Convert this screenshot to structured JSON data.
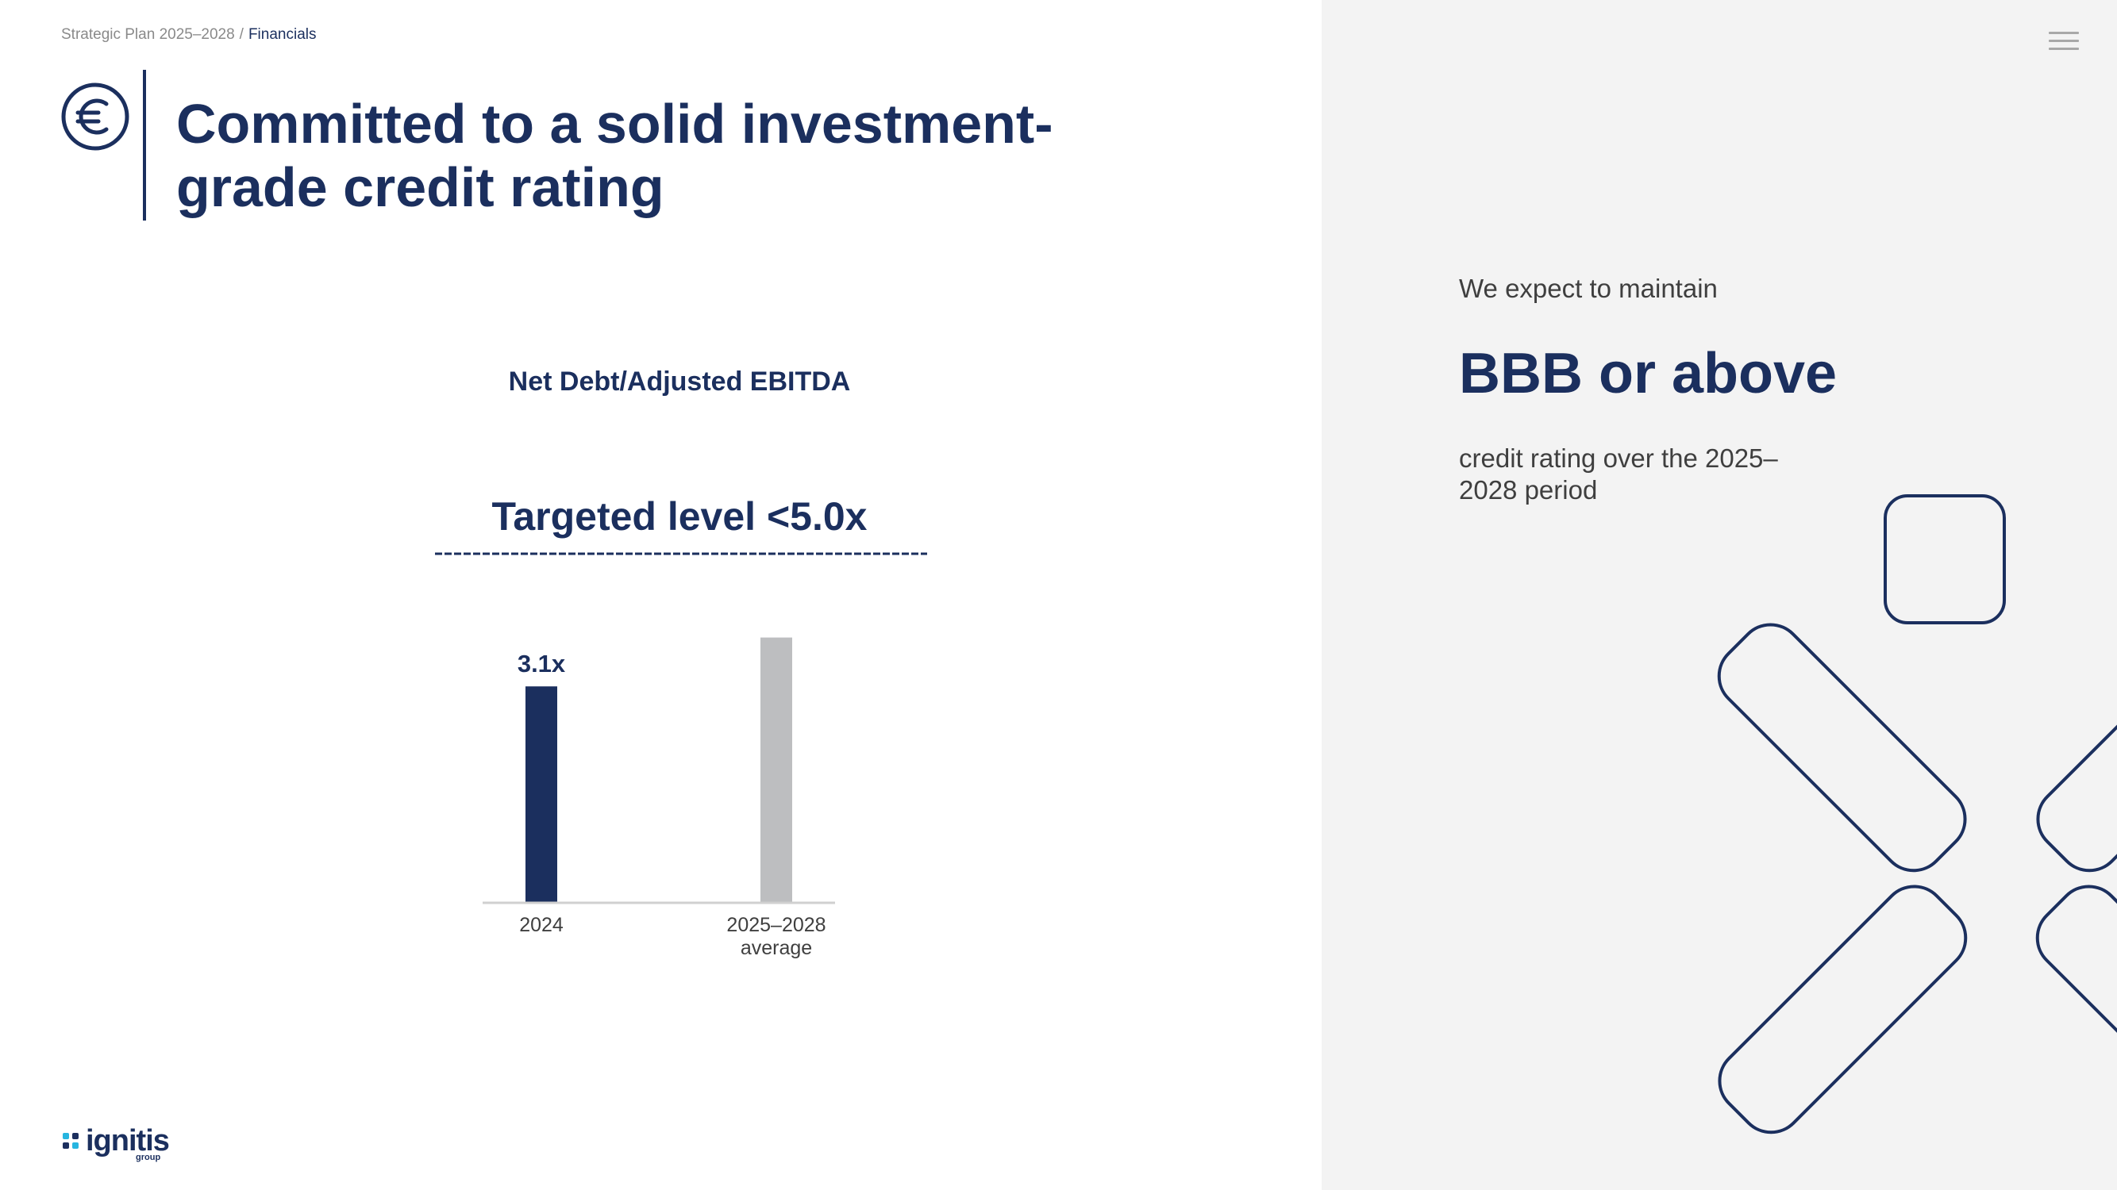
{
  "breadcrumb": {
    "parent": "Strategic Plan 2025–2028",
    "separator": "/",
    "current": "Financials"
  },
  "title": {
    "text": "Committed to a solid investment-grade credit rating",
    "icon": "euro-icon"
  },
  "chart_data": {
    "type": "bar",
    "title": "Net Debt/Adjusted EBITDA",
    "target_label": "Targeted level <5.0x",
    "target_value": 5.0,
    "categories": [
      "2024",
      "2025–2028\naverage"
    ],
    "series": [
      {
        "values": [
          3.1,
          3.8
        ],
        "value_labels": [
          "3.1x",
          ""
        ],
        "colors": [
          "#1b2f5e",
          "#bdbec0"
        ]
      }
    ],
    "ylim": [
      0,
      5.0
    ],
    "xlabel": "",
    "ylabel": "",
    "grid": false
  },
  "rating": {
    "intro": "We expect to maintain",
    "value": "BBB or above",
    "outro": "credit rating over the 2025–2028 period"
  },
  "logo": {
    "name": "ignitis",
    "sub": "group"
  },
  "colors": {
    "brand_navy": "#1b2f5e",
    "bar_grey": "#bdbec0",
    "panel_grey": "#f3f3f3"
  }
}
